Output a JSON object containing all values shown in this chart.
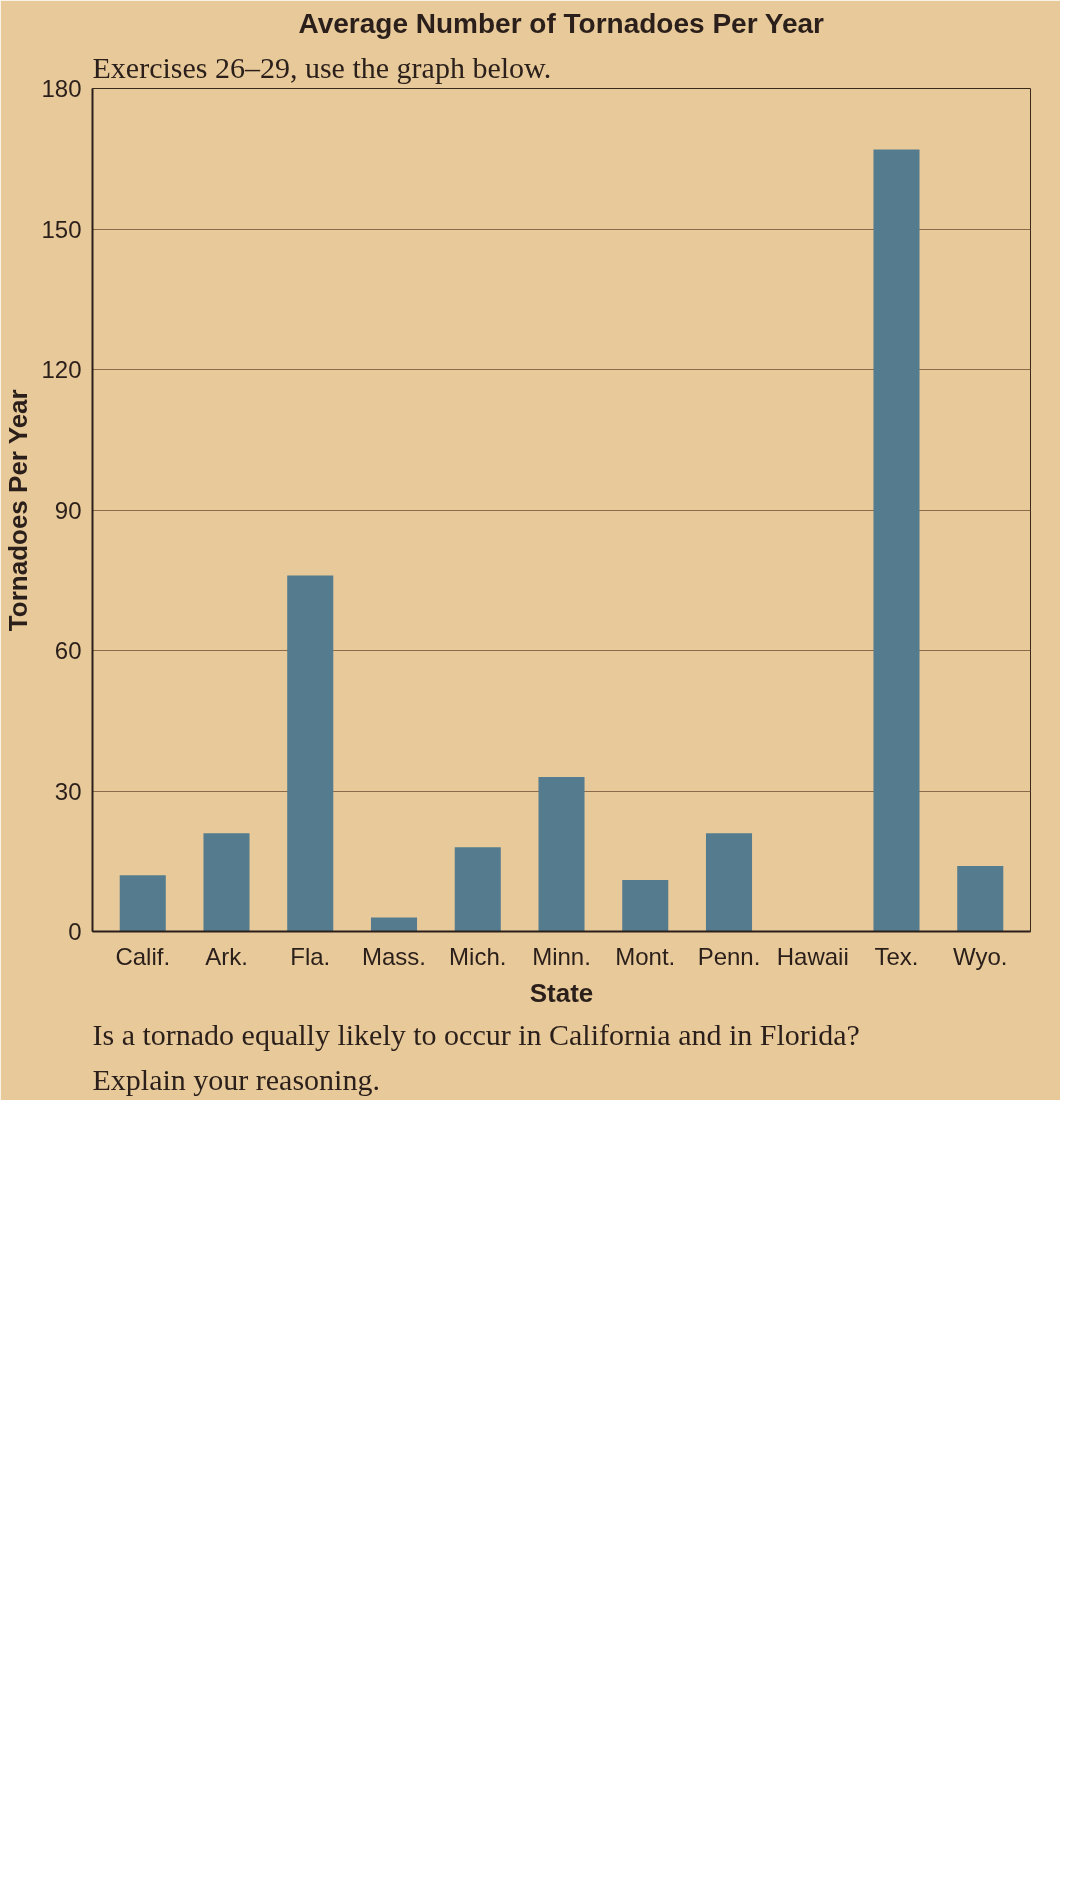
{
  "chart_data": {
    "type": "bar",
    "title": "Average Number of Tornadoes Per Year",
    "xlabel": "State",
    "ylabel": "Tornadoes Per Year",
    "categories": [
      "Calif.",
      "Ark.",
      "Fla.",
      "Mass.",
      "Mich.",
      "Minn.",
      "Mont.",
      "Penn.",
      "Hawaii",
      "Tex.",
      "Wyo."
    ],
    "values": [
      12,
      21,
      76,
      3,
      18,
      33,
      11,
      21,
      0,
      167,
      14
    ],
    "color": "#557c8e",
    "ylim": [
      0,
      180
    ],
    "yticks": [
      0,
      30,
      60,
      90,
      120,
      150,
      180
    ],
    "grid": "y",
    "annotations": [
      "Exercises 26–29, use the graph below.",
      "Is a tornado equally likely to occur in California and in Florida?",
      "Explain your reasoning."
    ]
  }
}
